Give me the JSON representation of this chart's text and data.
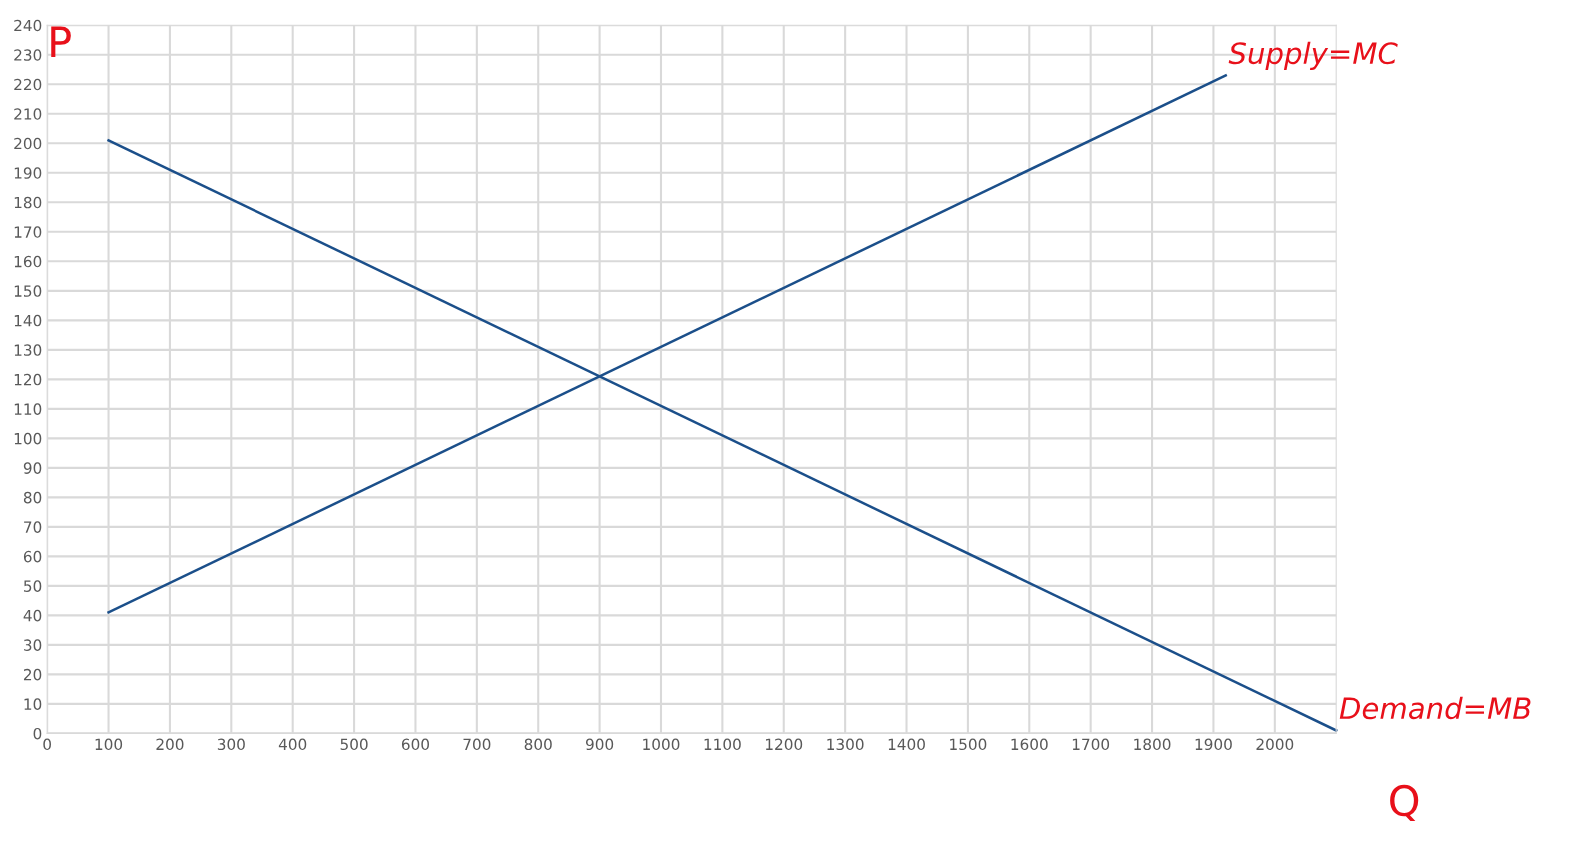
{
  "chart_data": {
    "type": "line",
    "xlabel": "Q",
    "ylabel": "P",
    "xlim": [
      0,
      2100
    ],
    "ylim": [
      0,
      240
    ],
    "xticks": [
      0,
      100,
      200,
      300,
      400,
      500,
      600,
      700,
      800,
      900,
      1000,
      1100,
      1200,
      1300,
      1400,
      1500,
      1600,
      1700,
      1800,
      1900,
      2000
    ],
    "yticks": [
      0,
      10,
      20,
      30,
      40,
      50,
      60,
      70,
      80,
      90,
      100,
      110,
      120,
      130,
      140,
      150,
      160,
      170,
      180,
      190,
      200,
      210,
      220,
      230,
      240
    ],
    "grid": true,
    "legend": false,
    "marker": "none",
    "line_style": "solid",
    "series": [
      {
        "color": "#1b4f8a",
        "x": [
          100,
          1920
        ],
        "values": [
          41,
          223
        ]
      },
      {
        "color": "#1b4f8a",
        "x": [
          100,
          2100
        ],
        "values": [
          201,
          1
        ]
      }
    ],
    "annotations": [
      {
        "text": "Supply=MC",
        "x": 1920,
        "y": 223
      },
      {
        "text": "Demand=MB",
        "x": 2100,
        "y": 1
      }
    ]
  }
}
